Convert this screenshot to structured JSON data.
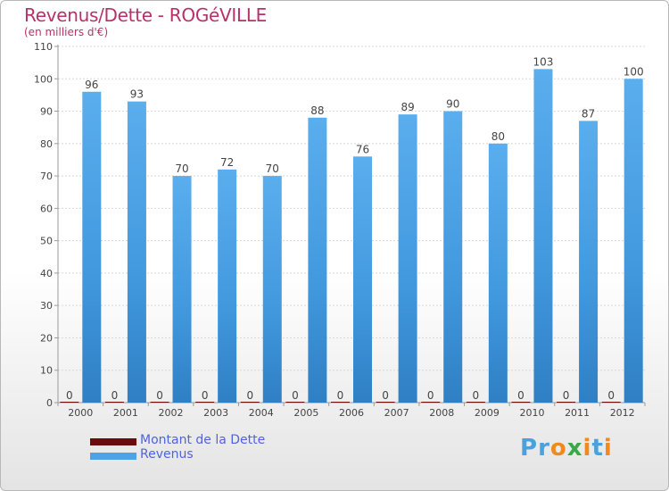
{
  "chart_data": {
    "type": "bar",
    "title": "Revenus/Dette - ROGéVILLE",
    "subtitle": "(en milliers d'€)",
    "categories": [
      "2000",
      "2001",
      "2002",
      "2003",
      "2004",
      "2005",
      "2006",
      "2007",
      "2008",
      "2009",
      "2010",
      "2011",
      "2012"
    ],
    "series": [
      {
        "name": "Montant de la Dette",
        "color": "#6b0c0c",
        "values": [
          0,
          0,
          0,
          0,
          0,
          0,
          0,
          0,
          0,
          0,
          0,
          0,
          0
        ]
      },
      {
        "name": "Revenus",
        "color": "#4ea3e6",
        "values": [
          96,
          93,
          70,
          72,
          70,
          88,
          76,
          89,
          90,
          80,
          103,
          87,
          100
        ]
      }
    ],
    "ylim": [
      0,
      110
    ],
    "yticks": [
      0,
      10,
      20,
      30,
      40,
      50,
      60,
      70,
      80,
      90,
      100,
      110
    ],
    "grid": true,
    "legend": "bottom-left"
  },
  "brand": {
    "letters": [
      "P",
      "r",
      "o",
      "x",
      "i",
      "t",
      "i"
    ],
    "colors": [
      "#4aa1dc",
      "#4aa1dc",
      "#f08a1c",
      "#3aa84a",
      "#f08a1c",
      "#4aa1dc",
      "#f08a1c"
    ]
  }
}
